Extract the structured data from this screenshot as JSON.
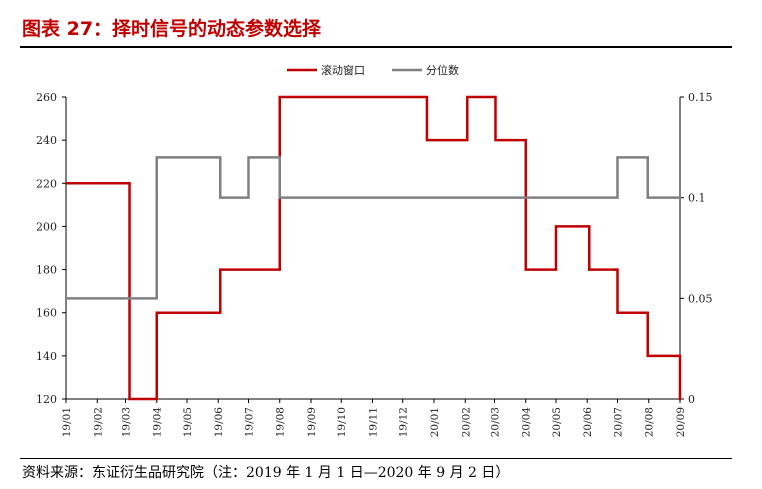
{
  "figure": {
    "title": "图表 27：择时信号的动态参数选择",
    "source": "资料来源：东证衍生品研究院（注：2019 年 1 月 1 日—2020 年 9 月 2 日）"
  },
  "chart_data": {
    "type": "line",
    "title": "",
    "xlabel": "",
    "ylabel": "",
    "y2label": "",
    "categories": [
      "19/01",
      "19/02",
      "19/03",
      "19/04",
      "19/05",
      "19/06",
      "19/07",
      "19/08",
      "19/09",
      "19/10",
      "19/11",
      "19/12",
      "20/01",
      "20/02",
      "20/03",
      "20/04",
      "20/05",
      "20/06",
      "20/07",
      "20/08",
      "20/09"
    ],
    "ylim": [
      120,
      260
    ],
    "yticks": [
      120,
      140,
      160,
      180,
      200,
      220,
      240,
      260
    ],
    "y2lim": [
      0,
      0.15
    ],
    "y2ticks": [
      0,
      0.05,
      0.1,
      0.15
    ],
    "y2ticklabels": [
      "0",
      "0.05",
      "0.1",
      "0.15"
    ],
    "legend_position": "top-center",
    "grid": false,
    "series": [
      {
        "name": "滚动窗口",
        "axis": "left",
        "color": "#c00000",
        "step": true,
        "points": [
          [
            "2019-01-01",
            220
          ],
          [
            "2019-03-05",
            120
          ],
          [
            "2019-04-01",
            160
          ],
          [
            "2019-06-03",
            180
          ],
          [
            "2019-08-01",
            260
          ],
          [
            "2019-12-25",
            240
          ],
          [
            "2020-02-03",
            260
          ],
          [
            "2020-03-02",
            240
          ],
          [
            "2020-04-01",
            180
          ],
          [
            "2020-05-01",
            200
          ],
          [
            "2020-06-03",
            180
          ],
          [
            "2020-07-01",
            160
          ],
          [
            "2020-07-31",
            140
          ],
          [
            "2020-09-01",
            120
          ],
          [
            "2020-09-02",
            120
          ]
        ]
      },
      {
        "name": "分位数",
        "axis": "right",
        "color": "#808080",
        "step": true,
        "points": [
          [
            "2019-01-01",
            0.05
          ],
          [
            "2019-04-01",
            0.12
          ],
          [
            "2019-06-03",
            0.1
          ],
          [
            "2019-07-01",
            0.12
          ],
          [
            "2019-08-01",
            0.1
          ],
          [
            "2020-07-01",
            0.12
          ],
          [
            "2020-07-31",
            0.1
          ],
          [
            "2020-09-02",
            0.1
          ]
        ]
      }
    ]
  },
  "colors": {
    "title": "#c00000",
    "axis": "#000000"
  }
}
